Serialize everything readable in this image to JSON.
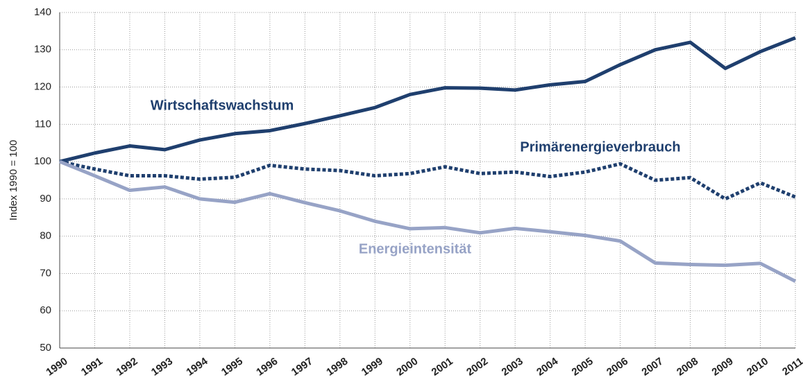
{
  "chart_data": {
    "type": "line",
    "y_label": "Index 1990 = 100",
    "x": [
      1990,
      1991,
      1992,
      1993,
      1994,
      1995,
      1996,
      1997,
      1998,
      1999,
      2000,
      2001,
      2002,
      2003,
      2004,
      2005,
      2006,
      2007,
      2008,
      2009,
      2010,
      2011
    ],
    "xlim": [
      1990,
      2011
    ],
    "xticks": [
      1990,
      1991,
      1992,
      1993,
      1994,
      1995,
      1996,
      1997,
      1998,
      1999,
      2000,
      2001,
      2002,
      2003,
      2004,
      2005,
      2006,
      2007,
      2008,
      2009,
      2010,
      2011
    ],
    "ylim": [
      50,
      140
    ],
    "yticks": [
      50,
      60,
      70,
      80,
      90,
      100,
      110,
      120,
      130,
      140
    ],
    "grid": true,
    "series": [
      {
        "name": "Wirtschaftswachstum",
        "color": "#1f3f6e",
        "dashed": false,
        "values": [
          100,
          102.3,
          104.2,
          103.2,
          105.8,
          107.5,
          108.3,
          110.2,
          112.3,
          114.5,
          118,
          119.8,
          119.7,
          119.2,
          120.6,
          121.5,
          126,
          130,
          132,
          125,
          129.5,
          133.2
        ]
      },
      {
        "name": "Primärenergieverbrauch",
        "color": "#1f3f6e",
        "dashed": true,
        "values": [
          100,
          98,
          96.2,
          96.2,
          95.3,
          95.8,
          99,
          98,
          97.6,
          96.2,
          96.8,
          98.6,
          96.8,
          97.2,
          96,
          97.2,
          99.4,
          95,
          95.7,
          90,
          94.3,
          90.5
        ]
      },
      {
        "name": "Energieintensität",
        "color": "#97a3c6",
        "dashed": false,
        "values": [
          100,
          96.2,
          92.3,
          93.2,
          90,
          89.1,
          91.4,
          89,
          86.8,
          84,
          82,
          82.3,
          80.9,
          82.1,
          81.2,
          80.2,
          78.7,
          72.8,
          72.4,
          72.2,
          72.7,
          67.9
        ]
      }
    ]
  }
}
